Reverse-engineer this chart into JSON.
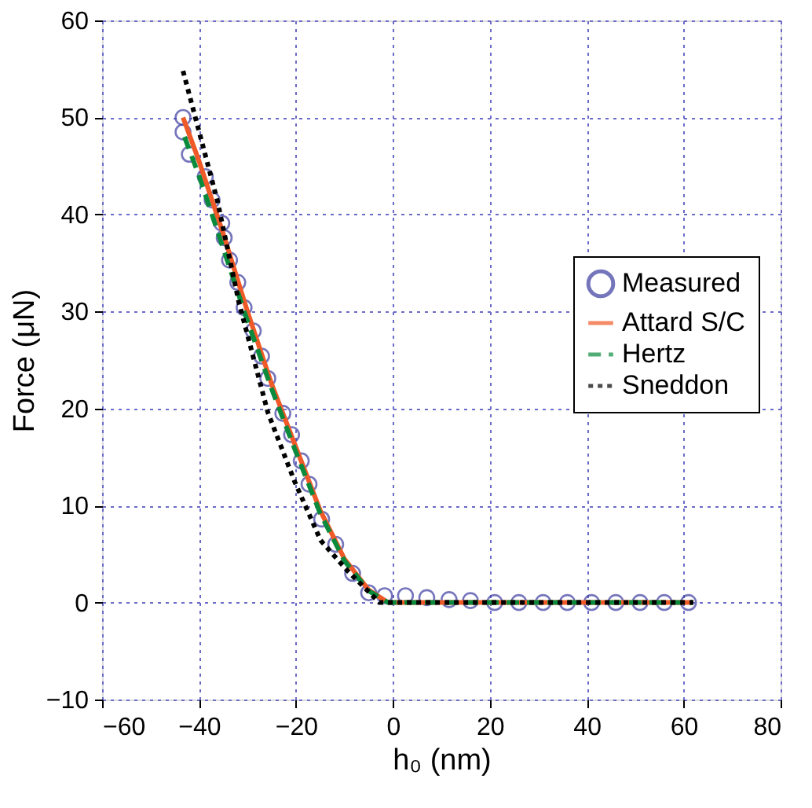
{
  "chart_data": {
    "type": "line",
    "xlabel": "h₀ (nm)",
    "ylabel": "Force (μN)",
    "xlim": [
      -60,
      80
    ],
    "xticks": [
      -60,
      -40,
      -20,
      0,
      20,
      40,
      60,
      80
    ],
    "ylim": [
      -10,
      60
    ],
    "yticks": [
      -10,
      0,
      10,
      20,
      30,
      40,
      50,
      60
    ],
    "grid": true,
    "legend": "right",
    "series": [
      {
        "name": "Measured",
        "type": "scatter",
        "marker": "circle",
        "color": "#3c3ca0",
        "x": [
          -43.3,
          -43.3,
          -42,
          -38.7,
          -37.3,
          -35.3,
          -34.8,
          -33.7,
          -32,
          -30.7,
          -28.8,
          -27.1,
          -25.8,
          -22.7,
          -20.9,
          -18.9,
          -17.3,
          -14.7,
          -11.8,
          -8.3,
          -5,
          -1.7,
          2.6,
          7,
          11.6,
          16,
          21,
          26,
          31,
          36,
          41,
          46,
          51,
          56,
          61
        ],
        "values": [
          50,
          48.5,
          46.2,
          43.9,
          41.5,
          39.1,
          37.6,
          35.3,
          33,
          30.4,
          28,
          25.4,
          23.1,
          19.5,
          17.3,
          14.6,
          12.2,
          8.6,
          6,
          3,
          1,
          0.7,
          0.7,
          0.5,
          0.3,
          0.2,
          0,
          0,
          0,
          0,
          0,
          0,
          0,
          0,
          0
        ]
      },
      {
        "name": "Attard S/C",
        "line_style": "solid",
        "color": "#f05a28",
        "x": [
          -43.3,
          -40,
          -35,
          -30,
          -25,
          -20,
          -15,
          -10,
          -5,
          -1,
          62
        ],
        "values": [
          50,
          45.5,
          38,
          30,
          22.5,
          16,
          9.5,
          4.5,
          1.3,
          0,
          0
        ]
      },
      {
        "name": "Hertz",
        "line_style": "dashed",
        "color": "#0a8a3c",
        "x": [
          -43,
          -40,
          -35,
          -30,
          -25,
          -20,
          -15,
          -10,
          -5,
          -1,
          62
        ],
        "values": [
          48,
          44,
          36.5,
          29,
          22,
          15.5,
          9.2,
          4.3,
          1.2,
          0,
          0
        ]
      },
      {
        "name": "Sneddon",
        "line_style": "dotted",
        "color": "#000000",
        "x": [
          -43.3,
          -36.2,
          -31.8,
          -25.8,
          -20.3,
          -14.9,
          -9.4,
          -2.8,
          0,
          62
        ],
        "values": [
          54.8,
          41.4,
          31,
          19.6,
          12.5,
          6.4,
          3.3,
          0,
          0,
          0
        ]
      }
    ]
  }
}
